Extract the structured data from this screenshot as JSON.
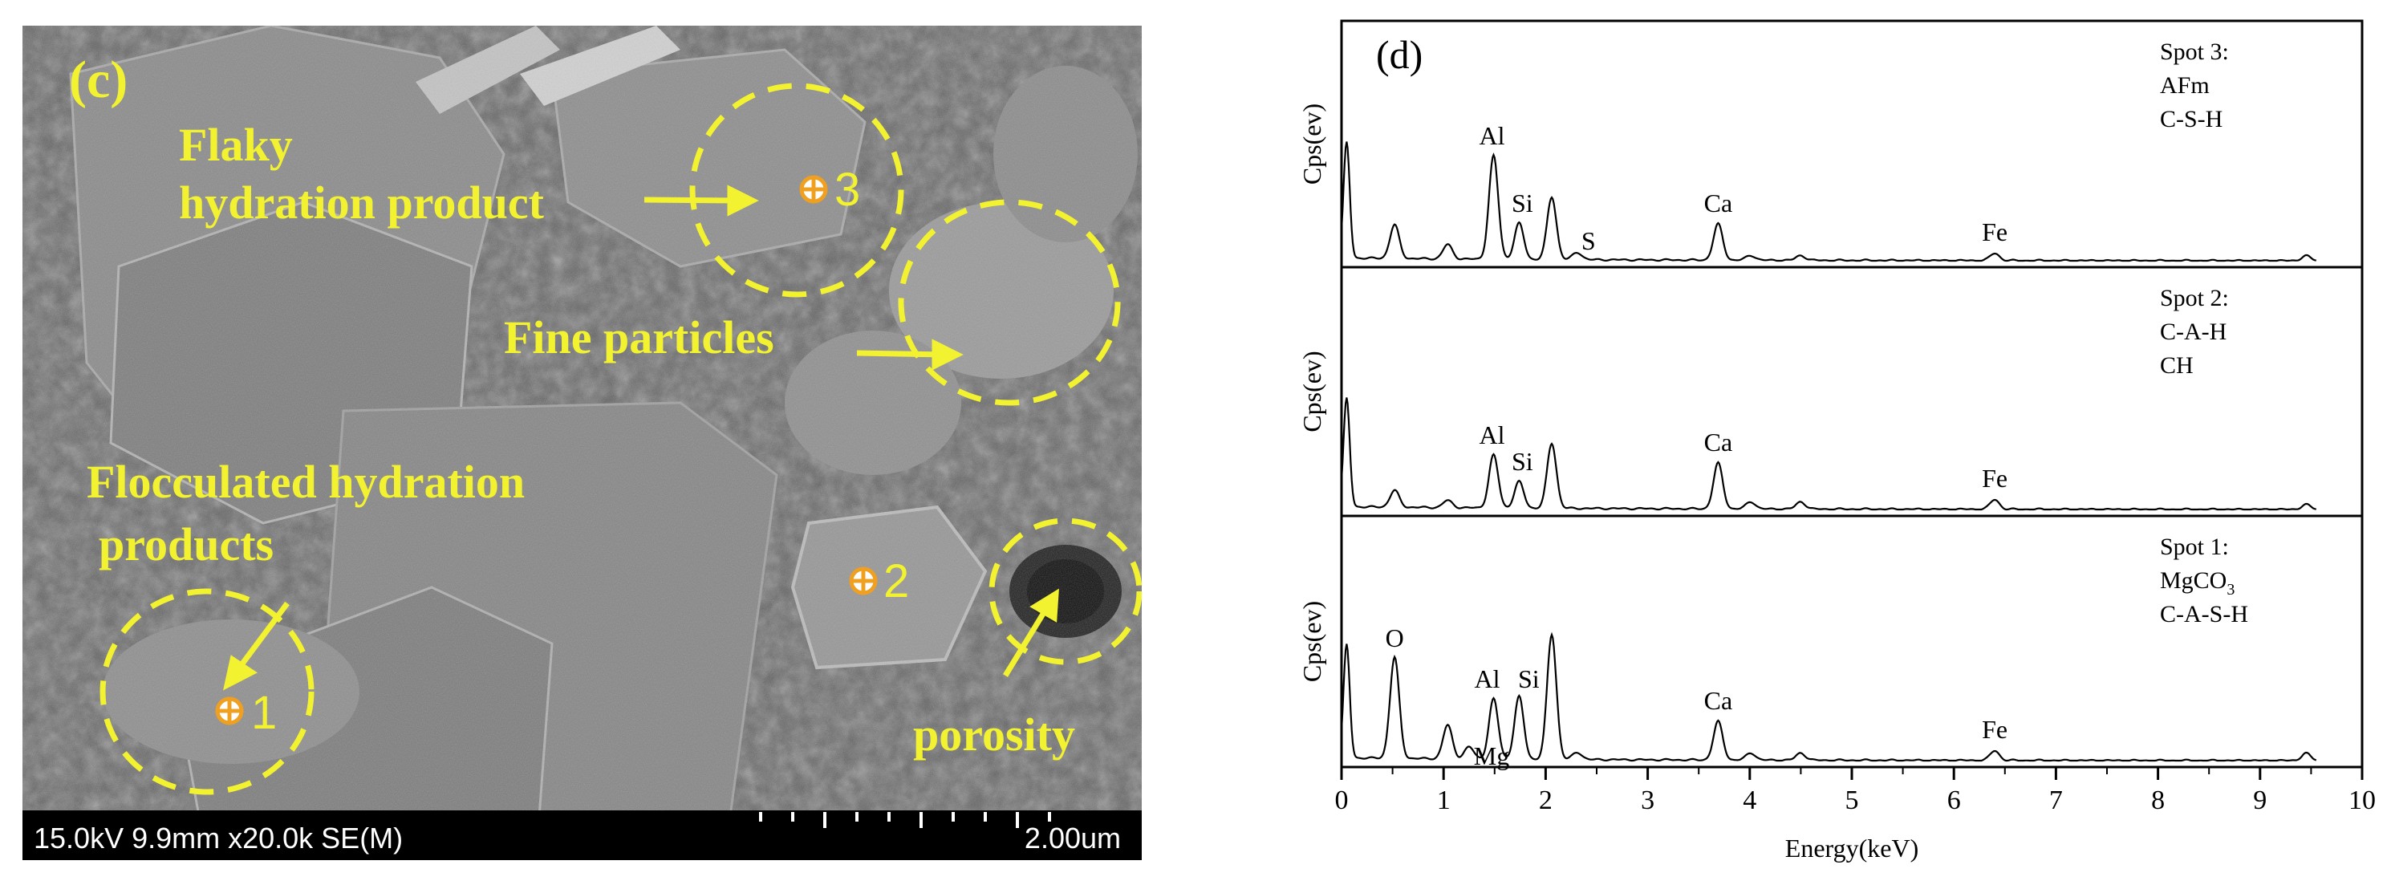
{
  "sem_panel": {
    "panel_label": "(c)",
    "labels": {
      "flaky_line1": "Flaky",
      "flaky_line2": "hydration product",
      "fine": "Fine particles",
      "floc_line1": "Flocculated hydration",
      "floc_line2": "products",
      "porosity": "porosity"
    },
    "spots": [
      "1",
      "2",
      "3"
    ],
    "info_bar": {
      "meta": "15.0kV 9.9mm x20.0k SE(M)",
      "scale": "2.00um"
    },
    "annotation_color": "#f2f230"
  },
  "eds_panel": {
    "panel_label": "(d)",
    "xlabel": "Energy(keV)",
    "ylabel": "Cps(ev)",
    "xticks": [
      "0",
      "1",
      "2",
      "3",
      "4",
      "5",
      "6",
      "7",
      "8",
      "9",
      "10"
    ],
    "spectra": [
      {
        "legend": [
          "Spot 3:",
          "AFm",
          "C-S-H"
        ],
        "peaks": [
          {
            "label": "Al"
          },
          {
            "label": "Si"
          },
          {
            "label": "S"
          },
          {
            "label": "Ca"
          },
          {
            "label": "Fe"
          }
        ]
      },
      {
        "legend": [
          "Spot 2:",
          "C-A-H",
          "CH"
        ],
        "peaks": [
          {
            "label": "Al"
          },
          {
            "label": "Si"
          },
          {
            "label": "Ca"
          },
          {
            "label": "Fe"
          }
        ]
      },
      {
        "legend": [
          "Spot 1:",
          "MgCO3",
          "C-A-S-H"
        ],
        "peaks": [
          {
            "label": "O"
          },
          {
            "label": "Mg"
          },
          {
            "label": "Al"
          },
          {
            "label": "Si"
          },
          {
            "label": "Ca"
          },
          {
            "label": "Fe"
          }
        ]
      }
    ]
  },
  "chart_data": {
    "type": "line",
    "title": "(d)",
    "xlabel": "Energy(keV)",
    "ylabel": "Cps(ev)",
    "xlim": [
      0,
      10
    ],
    "grid": false,
    "series": [
      {
        "name": "Spot 3: AFm C-S-H",
        "peaks": [
          {
            "x": 0.05,
            "y": 0.48
          },
          {
            "x": 0.52,
            "y": 0.14
          },
          {
            "x": 1.04,
            "y": 0.06
          },
          {
            "x": 1.49,
            "y": 0.43
          },
          {
            "x": 1.74,
            "y": 0.15
          },
          {
            "x": 2.06,
            "y": 0.26
          },
          {
            "x": 2.31,
            "y": 0.03
          },
          {
            "x": 3.69,
            "y": 0.15
          },
          {
            "x": 4.01,
            "y": 0.02
          },
          {
            "x": 4.5,
            "y": 0.02
          },
          {
            "x": 6.4,
            "y": 0.03
          },
          {
            "x": 9.45,
            "y": 0.02
          }
        ]
      },
      {
        "name": "Spot 2: C-A-H CH",
        "peaks": [
          {
            "x": 0.05,
            "y": 0.45
          },
          {
            "x": 0.52,
            "y": 0.07
          },
          {
            "x": 1.04,
            "y": 0.03
          },
          {
            "x": 1.49,
            "y": 0.22
          },
          {
            "x": 1.74,
            "y": 0.11
          },
          {
            "x": 2.06,
            "y": 0.27
          },
          {
            "x": 3.69,
            "y": 0.19
          },
          {
            "x": 4.01,
            "y": 0.03
          },
          {
            "x": 4.5,
            "y": 0.03
          },
          {
            "x": 6.4,
            "y": 0.04
          },
          {
            "x": 9.45,
            "y": 0.02
          }
        ]
      },
      {
        "name": "Spot 1: MgCO3 C-A-S-H",
        "peaks": [
          {
            "x": 0.05,
            "y": 0.47
          },
          {
            "x": 0.52,
            "y": 0.42
          },
          {
            "x": 1.04,
            "y": 0.14
          },
          {
            "x": 1.25,
            "y": 0.05
          },
          {
            "x": 1.49,
            "y": 0.25
          },
          {
            "x": 1.74,
            "y": 0.26
          },
          {
            "x": 2.06,
            "y": 0.52
          },
          {
            "x": 2.31,
            "y": 0.03
          },
          {
            "x": 3.69,
            "y": 0.16
          },
          {
            "x": 4.01,
            "y": 0.03
          },
          {
            "x": 4.5,
            "y": 0.03
          },
          {
            "x": 6.4,
            "y": 0.04
          },
          {
            "x": 9.45,
            "y": 0.03
          }
        ]
      }
    ]
  }
}
